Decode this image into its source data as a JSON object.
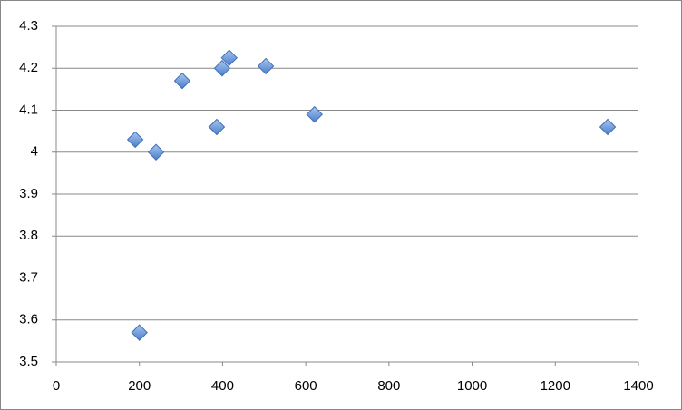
{
  "chart_data": {
    "type": "scatter",
    "x": [
      190,
      200,
      240,
      303,
      386,
      399,
      416,
      504,
      621,
      1326
    ],
    "values": [
      4.03,
      3.57,
      4.0,
      4.17,
      4.06,
      4.2,
      4.225,
      4.205,
      4.09,
      4.06
    ],
    "color": "#5b8fd6",
    "xlim": [
      0,
      1400
    ],
    "xticks": [
      0,
      200,
      400,
      600,
      800,
      1000,
      1200,
      1400
    ],
    "ylim": [
      3.5,
      4.3
    ],
    "yticks": [
      3.5,
      3.6,
      3.7,
      3.8,
      3.9,
      4,
      4.1,
      4.2,
      4.3
    ],
    "grid": true
  }
}
